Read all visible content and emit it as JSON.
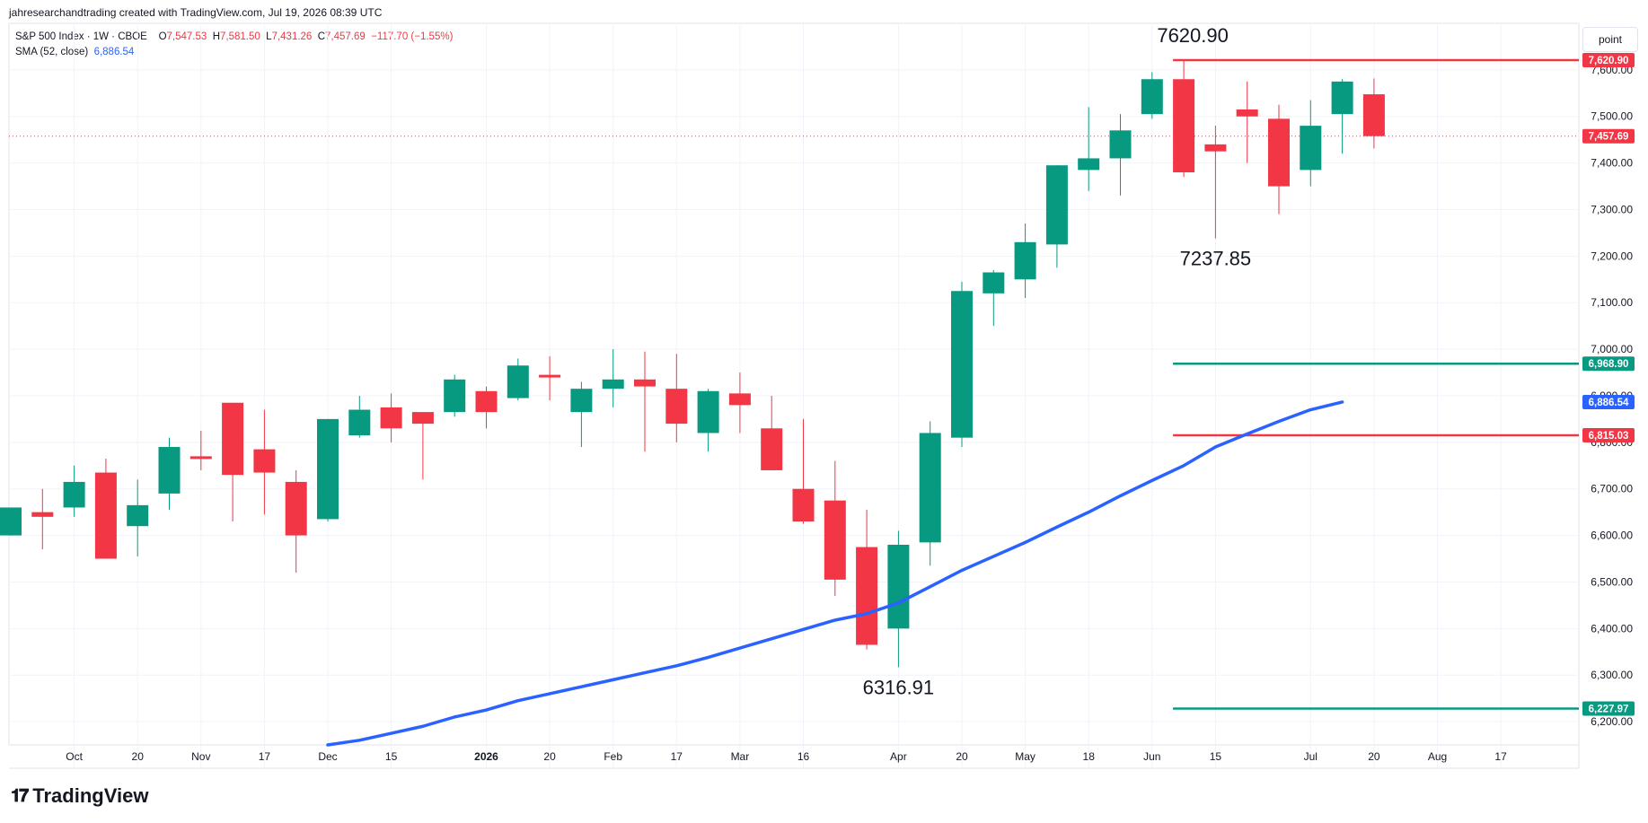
{
  "header": {
    "attribution": "jahresearchandtrading created with TradingView.com, Jul 19, 2026 08:39 UTC",
    "symbol": "S&P 500 Index · 1W · CBOE",
    "o_label": "O",
    "o_value": "7,547.53",
    "h_label": "H",
    "h_value": "7,581.50",
    "l_label": "L",
    "l_value": "7,431.26",
    "c_label": "C",
    "c_value": "7,457.69",
    "change": "−117.70 (−1.55%)",
    "sma_label": "SMA (52, close)",
    "sma_value": "6,886.54"
  },
  "toolbar": {
    "point_label": "point"
  },
  "brand": {
    "name": "TradingView",
    "logo_icon": "tradingview-logo-icon"
  },
  "colors": {
    "up": "#089981",
    "down": "#f23645",
    "sma": "#2962ff",
    "grid": "#f0f3fa",
    "axis_text": "#131722"
  },
  "chart_data": {
    "type": "candlestick",
    "ylim": [
      6150,
      7700
    ],
    "y_ticks": [
      6200,
      6300,
      6400,
      6500,
      6600,
      6700,
      6800,
      6900,
      7000,
      7100,
      7200,
      7300,
      7400,
      7500,
      7600
    ],
    "y_tick_labels": [
      "6,200.00",
      "6,300.00",
      "6,400.00",
      "6,500.00",
      "6,600.00",
      "6,700.00",
      "6,800.00",
      "6,900.00",
      "7,000.00",
      "7,100.00",
      "7,200.00",
      "7,300.00",
      "7,400.00",
      "7,500.00",
      "7,600.00"
    ],
    "x_ticks": [
      {
        "i": 2,
        "label": "Oct"
      },
      {
        "i": 4,
        "label": "20"
      },
      {
        "i": 6,
        "label": "Nov"
      },
      {
        "i": 8,
        "label": "17"
      },
      {
        "i": 10,
        "label": "Dec"
      },
      {
        "i": 12,
        "label": "15"
      },
      {
        "i": 15,
        "label": "2026",
        "bold": true
      },
      {
        "i": 17,
        "label": "20"
      },
      {
        "i": 19,
        "label": "Feb"
      },
      {
        "i": 21,
        "label": "17"
      },
      {
        "i": 23,
        "label": "Mar"
      },
      {
        "i": 25,
        "label": "16"
      },
      {
        "i": 28,
        "label": "Apr"
      },
      {
        "i": 30,
        "label": "20"
      },
      {
        "i": 32,
        "label": "May"
      },
      {
        "i": 34,
        "label": "18"
      },
      {
        "i": 36,
        "label": "Jun"
      },
      {
        "i": 38,
        "label": "15"
      },
      {
        "i": 41,
        "label": "Jul"
      },
      {
        "i": 43,
        "label": "20"
      },
      {
        "i": 45,
        "label": "Aug"
      },
      {
        "i": 47,
        "label": "17"
      }
    ],
    "candles": [
      {
        "o": 6600,
        "h": 6660,
        "l": 6600,
        "c": 6660
      },
      {
        "o": 6650,
        "h": 6700,
        "l": 6570,
        "c": 6640
      },
      {
        "o": 6660,
        "h": 6750,
        "l": 6640,
        "c": 6715
      },
      {
        "o": 6735,
        "h": 6765,
        "l": 6550,
        "c": 6550
      },
      {
        "o": 6620,
        "h": 6720,
        "l": 6555,
        "c": 6665
      },
      {
        "o": 6690,
        "h": 6810,
        "l": 6655,
        "c": 6790
      },
      {
        "o": 6770,
        "h": 6825,
        "l": 6740,
        "c": 6765
      },
      {
        "o": 6885,
        "h": 6885,
        "l": 6630,
        "c": 6730
      },
      {
        "o": 6785,
        "h": 6870,
        "l": 6645,
        "c": 6735
      },
      {
        "o": 6715,
        "h": 6740,
        "l": 6520,
        "c": 6600
      },
      {
        "o": 6635,
        "h": 6850,
        "l": 6630,
        "c": 6850
      },
      {
        "o": 6815,
        "h": 6900,
        "l": 6810,
        "c": 6870
      },
      {
        "o": 6875,
        "h": 6905,
        "l": 6800,
        "c": 6830
      },
      {
        "o": 6865,
        "h": 6865,
        "l": 6720,
        "c": 6840
      },
      {
        "o": 6865,
        "h": 6945,
        "l": 6855,
        "c": 6935
      },
      {
        "o": 6910,
        "h": 6920,
        "l": 6830,
        "c": 6865
      },
      {
        "o": 6895,
        "h": 6980,
        "l": 6890,
        "c": 6965
      },
      {
        "o": 6945,
        "h": 6985,
        "l": 6890,
        "c": 6940
      },
      {
        "o": 6865,
        "h": 6930,
        "l": 6790,
        "c": 6915
      },
      {
        "o": 6915,
        "h": 7000,
        "l": 6875,
        "c": 6935
      },
      {
        "o": 6935,
        "h": 6995,
        "l": 6780,
        "c": 6920
      },
      {
        "o": 6915,
        "h": 6990,
        "l": 6800,
        "c": 6840
      },
      {
        "o": 6820,
        "h": 6915,
        "l": 6780,
        "c": 6910
      },
      {
        "o": 6905,
        "h": 6950,
        "l": 6820,
        "c": 6880
      },
      {
        "o": 6830,
        "h": 6900,
        "l": 6740,
        "c": 6740
      },
      {
        "o": 6700,
        "h": 6850,
        "l": 6625,
        "c": 6630
      },
      {
        "o": 6675,
        "h": 6760,
        "l": 6470,
        "c": 6505
      },
      {
        "o": 6575,
        "h": 6655,
        "l": 6355,
        "c": 6365
      },
      {
        "o": 6400,
        "h": 6610,
        "l": 6316.91,
        "c": 6580
      },
      {
        "o": 6585,
        "h": 6845,
        "l": 6535,
        "c": 6820
      },
      {
        "o": 6810,
        "h": 7145,
        "l": 6790,
        "c": 7125
      },
      {
        "o": 7120,
        "h": 7170,
        "l": 7050,
        "c": 7165
      },
      {
        "o": 7150,
        "h": 7270,
        "l": 7110,
        "c": 7230
      },
      {
        "o": 7225,
        "h": 7395,
        "l": 7175,
        "c": 7395
      },
      {
        "o": 7385,
        "h": 7520,
        "l": 7340,
        "c": 7410
      },
      {
        "o": 7410,
        "h": 7505,
        "l": 7330,
        "c": 7470
      },
      {
        "o": 7505,
        "h": 7595,
        "l": 7495,
        "c": 7580
      },
      {
        "o": 7580,
        "h": 7620.9,
        "l": 7370,
        "c": 7380
      },
      {
        "o": 7440,
        "h": 7480,
        "l": 7237.85,
        "c": 7425
      },
      {
        "o": 7515,
        "h": 7575,
        "l": 7400,
        "c": 7500
      },
      {
        "o": 7495,
        "h": 7525,
        "l": 7290,
        "c": 7350
      },
      {
        "o": 7385,
        "h": 7535,
        "l": 7350,
        "c": 7480
      },
      {
        "o": 7505,
        "h": 7580,
        "l": 7420,
        "c": 7575
      },
      {
        "o": 7547.53,
        "h": 7581.5,
        "l": 7431.26,
        "c": 7457.69
      }
    ],
    "sma": {
      "name": "SMA (52, close)",
      "start_index": 10,
      "values": [
        6150,
        6160,
        6175,
        6190,
        6210,
        6225,
        6245,
        6260,
        6275,
        6290,
        6305,
        6320,
        6338,
        6358,
        6378,
        6398,
        6418,
        6432,
        6455,
        6490,
        6525,
        6555,
        6585,
        6618,
        6650,
        6685,
        6718,
        6750,
        6790,
        6818,
        6845,
        6870,
        6886.54
      ]
    },
    "hlines": [
      {
        "value": 7620.9,
        "label": "7,620.90",
        "color": "#f23645",
        "from": 37
      },
      {
        "value": 6968.9,
        "label": "6,968.90",
        "color": "#089981",
        "from": 37
      },
      {
        "value": 6815.03,
        "label": "6,815.03",
        "color": "#f23645",
        "from": 37
      },
      {
        "value": 6227.97,
        "label": "6,227.97",
        "color": "#089981",
        "from": 37
      }
    ],
    "last_price": {
      "value": 7457.69,
      "label": "7,457.69",
      "color": "#f23645"
    },
    "sma_badge": {
      "value": 6886.54,
      "label": "6,886.54",
      "color": "#2962ff"
    },
    "annotations": [
      {
        "text": "7620.90",
        "i": 37,
        "value": 7620.9,
        "pos": "above"
      },
      {
        "text": "7237.85",
        "i": 38,
        "value": 7237.85,
        "pos": "below"
      },
      {
        "text": "6316.91",
        "i": 28,
        "value": 6316.91,
        "pos": "below"
      }
    ]
  }
}
